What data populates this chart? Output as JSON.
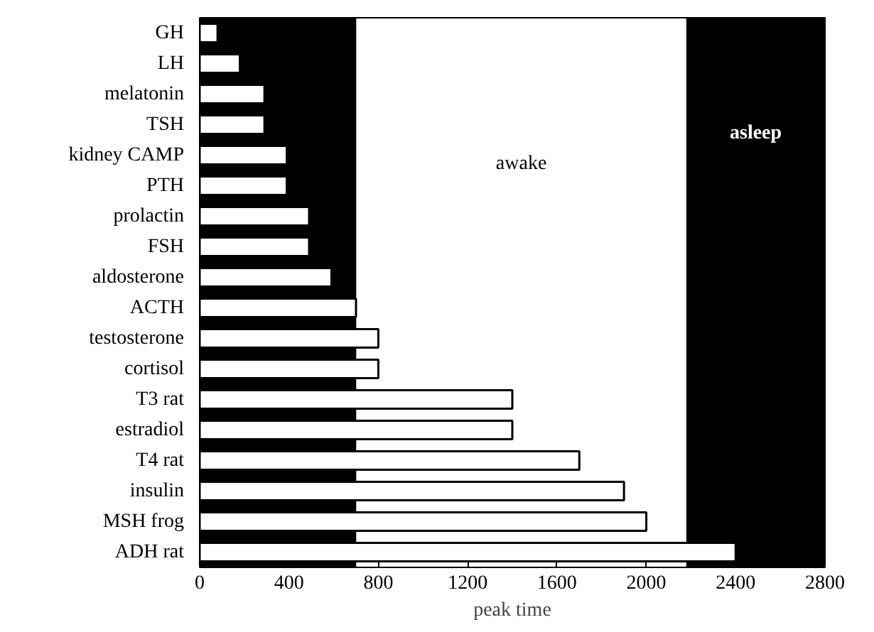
{
  "chart_data": {
    "type": "bar",
    "orientation": "horizontal",
    "xlabel": "peak time",
    "categories": [
      "GH",
      "LH",
      "melatonin",
      "TSH",
      "kidney CAMP",
      "PTH",
      "prolactin",
      "FSH",
      "aldosterone",
      "ACTH",
      "testosterone",
      "cortisol",
      "T3 rat",
      "estradiol",
      "T4 rat",
      "insulin",
      "MSH frog",
      "ADH rat"
    ],
    "values": [
      80,
      180,
      290,
      290,
      390,
      390,
      490,
      490,
      590,
      700,
      800,
      800,
      1400,
      1400,
      1700,
      1900,
      2000,
      2400
    ],
    "color": "#ffffff",
    "xlim": [
      0,
      2800
    ],
    "xticks": [
      0,
      400,
      800,
      1200,
      1600,
      2000,
      2400,
      2800
    ],
    "bands": [
      {
        "axis": "x",
        "from": 0,
        "to": 700,
        "color": "#000000"
      },
      {
        "axis": "x",
        "from": 2180,
        "to": 2800,
        "label": "asleep",
        "color": "#000000"
      }
    ],
    "annotations": [
      "awake"
    ],
    "grid": false
  }
}
